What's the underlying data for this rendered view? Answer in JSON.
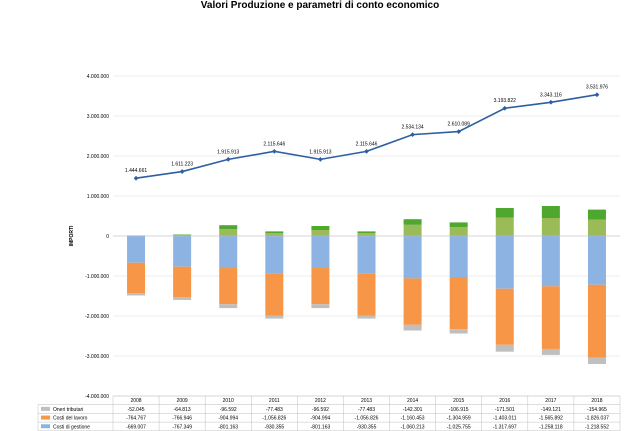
{
  "title": "Valori Produzione e  parametri di conto economico",
  "chart_data": {
    "type": "bar",
    "title": "Valori Produzione e  parametri di conto economico",
    "ylabel": "IMPORTI",
    "ylim": [
      -4000000,
      4000000
    ],
    "y_ticks": [
      4000000,
      3000000,
      2000000,
      1000000,
      0,
      -1000000,
      -2000000,
      -3000000,
      -4000000
    ],
    "y_tick_labels": [
      "4.000.000",
      "3.000.000",
      "2.000.000",
      "1.000.000",
      "0",
      "-1.000.000",
      "-2.000.000",
      "-3.000.000",
      "-4.000.000"
    ],
    "grid": true,
    "categories": [
      "2008",
      "2009",
      "2010",
      "2011",
      "2012",
      "2013",
      "2014",
      "2015",
      "2016",
      "2017",
      "2018"
    ],
    "line": {
      "values": [
        1444661,
        1611223,
        1915913,
        2115646,
        1915913,
        2115646,
        2534134,
        2610089,
        3193822,
        3343116,
        3531976
      ],
      "labels": [
        "1.444.661",
        "1.611.223",
        "1.915.913",
        "2.115.646",
        "1.915.913",
        "2.115.646",
        "2.534.134",
        "2.610.089",
        "3.193.822",
        "3.343.116",
        "3.531.976"
      ],
      "color": "#2e5fa3"
    },
    "negative_series": [
      {
        "name": "Costi di gestione",
        "color": "#8db3e2",
        "values": [
          -669007,
          -767349,
          -801163,
          -930355,
          -801163,
          -930355,
          -1060213,
          -1025755,
          -1317697,
          -1258118,
          -1218552
        ],
        "labels": [
          "-669.007",
          "-767.349",
          "-801.163",
          "-930.355",
          "-801.163",
          "-930.355",
          "-1.060.213",
          "-1.025.755",
          "-1.317.697",
          "-1.258.118",
          "-1.218.552"
        ]
      },
      {
        "name": "Costi del lavoro",
        "color": "#f79646",
        "values": [
          -764767,
          -766946,
          -904994,
          -1056826,
          -904994,
          -1056826,
          -1160453,
          -1304959,
          -1403011,
          -1565892,
          -1826037
        ],
        "labels": [
          "-764.767",
          "-766.946",
          "-904.994",
          "-1.056.826",
          "-904.994",
          "-1.056.826",
          "-1.160.453",
          "-1.304.959",
          "-1.403.011",
          "-1.565.892",
          "-1.826.037"
        ]
      },
      {
        "name": "Oneri tributari",
        "color": "#bfbfbf",
        "values": [
          -52045,
          -64813,
          -96592,
          -77483,
          -96592,
          -77483,
          -142301,
          -106915,
          -171501,
          -149121,
          -154965
        ],
        "labels": [
          "-52.045",
          "-64.813",
          "-96.592",
          "-77.483",
          "-96.592",
          "-77.483",
          "-142.301",
          "-106.915",
          "-171.501",
          "-149.121",
          "-154.965"
        ]
      }
    ],
    "positive_series": [
      {
        "color": "#9bbb59",
        "values": [
          8000,
          30000,
          170000,
          70000,
          150000,
          70000,
          280000,
          220000,
          460000,
          450000,
          410000
        ]
      },
      {
        "color": "#4ea72e",
        "values": [
          2000,
          10000,
          100000,
          45000,
          100000,
          45000,
          140000,
          120000,
          240000,
          300000,
          250000
        ]
      }
    ],
    "table_rows": [
      {
        "legend": "Oneri tributari",
        "color": "#bfbfbf"
      },
      {
        "legend": "Costi del lavoro",
        "color": "#f79646"
      },
      {
        "legend": "Costi di gestione",
        "color": "#8db3e2"
      }
    ]
  }
}
